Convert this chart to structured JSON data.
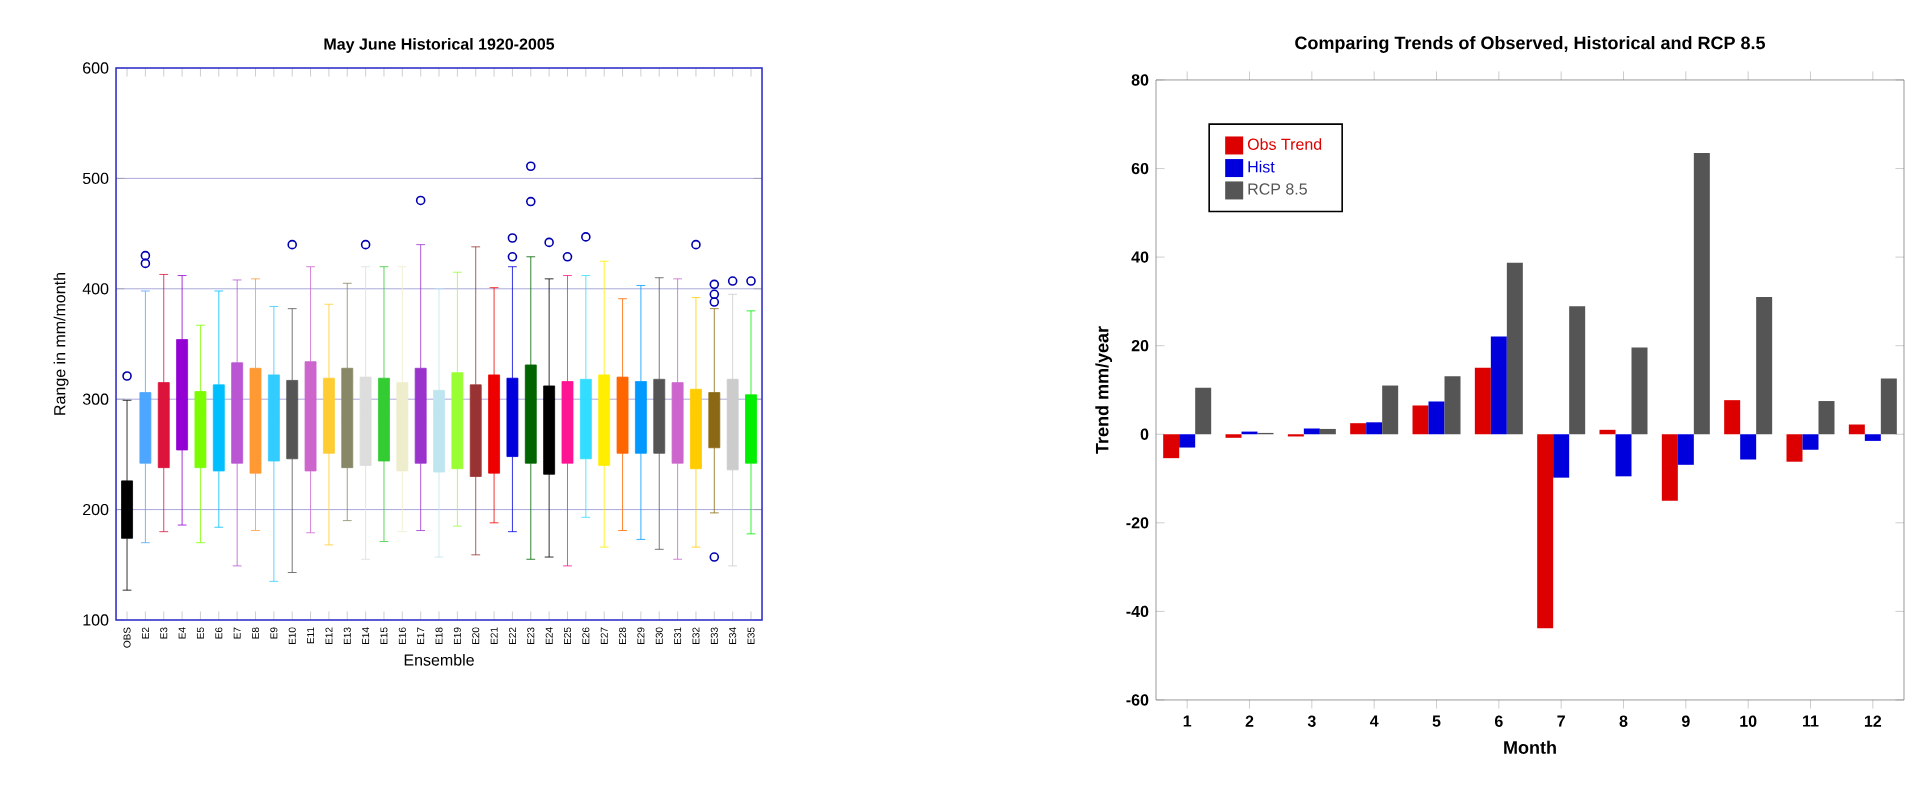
{
  "chart_data": [
    {
      "type": "box",
      "title": "May June Historical 1920-2005",
      "xlabel": "Ensemble",
      "ylabel": "Range in mm/month",
      "categories": [
        "OBS",
        "E2",
        "E3",
        "E4",
        "E5",
        "E6",
        "E7",
        "E8",
        "E9",
        "E10",
        "E11",
        "E12",
        "E13",
        "E14",
        "E15",
        "E16",
        "E17",
        "E18",
        "E19",
        "E20",
        "E21",
        "E22",
        "E23",
        "E24",
        "E25",
        "E26",
        "E27",
        "E28",
        "E29",
        "E30",
        "E31",
        "E32",
        "E33",
        "E34",
        "E35"
      ],
      "colors": [
        "#000000",
        "#4da6ff",
        "#dc143c",
        "#9400d3",
        "#7cfc00",
        "#00bfff",
        "#ba55d3",
        "#ff9933",
        "#33ccff",
        "#555555",
        "#cc66cc",
        "#ffcc33",
        "#888866",
        "#dddddd",
        "#33cc33",
        "#eeeecc",
        "#9933cc",
        "#bfe6f0",
        "#99ff33",
        "#993333",
        "#ee0000",
        "#0000dd",
        "#006400",
        "#000000",
        "#ff1493",
        "#33ddff",
        "#ffee00",
        "#ff6600",
        "#0099ff",
        "#555555",
        "#cc66cc",
        "#ffcc00",
        "#8b6914",
        "#cccccc",
        "#00ee00"
      ],
      "boxes": [
        {
          "low": 127,
          "q1": 174,
          "median": 205,
          "q3": 226,
          "high": 299,
          "outliers": [
            321
          ]
        },
        {
          "low": 170,
          "q1": 242,
          "median": 300,
          "q3": 306,
          "high": 398,
          "outliers": [
            430,
            423
          ]
        },
        {
          "low": 180,
          "q1": 238,
          "median": 300,
          "q3": 315,
          "high": 413
        },
        {
          "low": 186,
          "q1": 254,
          "median": 300,
          "q3": 354,
          "high": 412
        },
        {
          "low": 170,
          "q1": 238,
          "median": 290,
          "q3": 307,
          "high": 367
        },
        {
          "low": 184,
          "q1": 235,
          "median": 290,
          "q3": 313,
          "high": 398
        },
        {
          "low": 149,
          "q1": 242,
          "median": 300,
          "q3": 333,
          "high": 408
        },
        {
          "low": 181,
          "q1": 233,
          "median": 282,
          "q3": 328,
          "high": 409
        },
        {
          "low": 135,
          "q1": 244,
          "median": 283,
          "q3": 322,
          "high": 384
        },
        {
          "low": 143,
          "q1": 246,
          "median": 300,
          "q3": 317,
          "high": 382,
          "outliers": [
            440
          ]
        },
        {
          "low": 179,
          "q1": 235,
          "median": 300,
          "q3": 334,
          "high": 420
        },
        {
          "low": 168,
          "q1": 251,
          "median": 300,
          "q3": 319,
          "high": 386
        },
        {
          "low": 190,
          "q1": 238,
          "median": 280,
          "q3": 328,
          "high": 405
        },
        {
          "low": 155,
          "q1": 240,
          "median": 290,
          "q3": 320,
          "high": 420,
          "outliers": [
            440
          ]
        },
        {
          "low": 171,
          "q1": 244,
          "median": 285,
          "q3": 319,
          "high": 420
        },
        {
          "low": 180,
          "q1": 235,
          "median": 290,
          "q3": 315,
          "high": 420
        },
        {
          "low": 181,
          "q1": 242,
          "median": 280,
          "q3": 328,
          "high": 440,
          "outliers": [
            480
          ]
        },
        {
          "low": 157,
          "q1": 234,
          "median": 290,
          "q3": 308,
          "high": 400
        },
        {
          "low": 185,
          "q1": 237,
          "median": 290,
          "q3": 324,
          "high": 415
        },
        {
          "low": 159,
          "q1": 230,
          "median": 295,
          "q3": 313,
          "high": 438
        },
        {
          "low": 188,
          "q1": 233,
          "median": 300,
          "q3": 322,
          "high": 401
        },
        {
          "low": 180,
          "q1": 248,
          "median": 295,
          "q3": 319,
          "high": 420,
          "outliers": [
            446,
            429
          ]
        },
        {
          "low": 155,
          "q1": 242,
          "median": 300,
          "q3": 331,
          "high": 429,
          "outliers": [
            511,
            479
          ]
        },
        {
          "low": 157,
          "q1": 232,
          "median": 300,
          "q3": 312,
          "high": 409,
          "outliers": [
            442
          ]
        },
        {
          "low": 149,
          "q1": 242,
          "median": 295,
          "q3": 316,
          "high": 412,
          "outliers": [
            429
          ]
        },
        {
          "low": 193,
          "q1": 246,
          "median": 300,
          "q3": 318,
          "high": 412,
          "outliers": [
            447
          ]
        },
        {
          "low": 166,
          "q1": 240,
          "median": 300,
          "q3": 322,
          "high": 425
        },
        {
          "low": 181,
          "q1": 251,
          "median": 295,
          "q3": 320,
          "high": 391
        },
        {
          "low": 173,
          "q1": 251,
          "median": 300,
          "q3": 316,
          "high": 403
        },
        {
          "low": 164,
          "q1": 251,
          "median": 300,
          "q3": 318,
          "high": 410
        },
        {
          "low": 155,
          "q1": 242,
          "median": 295,
          "q3": 315,
          "high": 409
        },
        {
          "low": 166,
          "q1": 237,
          "median": 290,
          "q3": 309,
          "high": 392,
          "outliers": [
            440
          ]
        },
        {
          "low": 197,
          "q1": 256,
          "median": 295,
          "q3": 306,
          "high": 382,
          "outliers": [
            404,
            395,
            388,
            157
          ]
        },
        {
          "low": 149,
          "q1": 236,
          "median": 300,
          "q3": 318,
          "high": 395,
          "outliers": [
            407
          ]
        },
        {
          "low": 178,
          "q1": 242,
          "median": 295,
          "q3": 304,
          "high": 380,
          "outliers": [
            407
          ]
        }
      ],
      "ylim": [
        100,
        600
      ],
      "yticks": [
        100,
        200,
        300,
        400,
        500,
        600
      ],
      "grid": "y",
      "marker": "circle"
    },
    {
      "type": "bar",
      "title": "Comparing Trends of Observed, Historical and RCP 8.5",
      "xlabel": "Month",
      "ylabel": "Trend mm/year",
      "categories": [
        "1",
        "2",
        "3",
        "4",
        "5",
        "6",
        "7",
        "8",
        "9",
        "10",
        "11",
        "12"
      ],
      "series": [
        {
          "name": "Obs Trend",
          "color": "#dd0000",
          "values": [
            -5.4,
            -0.8,
            -0.5,
            2.5,
            6.5,
            15,
            -43.8,
            1,
            -15,
            7.7,
            -6.2,
            2.2
          ]
        },
        {
          "name": "Hist",
          "color": "#0000dd",
          "values": [
            -3,
            0.6,
            1.3,
            2.7,
            7.4,
            22.1,
            -9.8,
            -9.5,
            -6.9,
            -5.7,
            -3.5,
            -1.5
          ]
        },
        {
          "name": "RCP 8.5",
          "color": "#555555",
          "values": [
            10.5,
            0.3,
            1.2,
            11,
            13.1,
            38.7,
            28.9,
            19.6,
            63.5,
            31,
            7.5,
            12.6
          ]
        }
      ],
      "ylim": [
        -60,
        80
      ],
      "yticks": [
        -60,
        -40,
        -20,
        0,
        20,
        40,
        60,
        80
      ],
      "legend": "top left"
    }
  ]
}
